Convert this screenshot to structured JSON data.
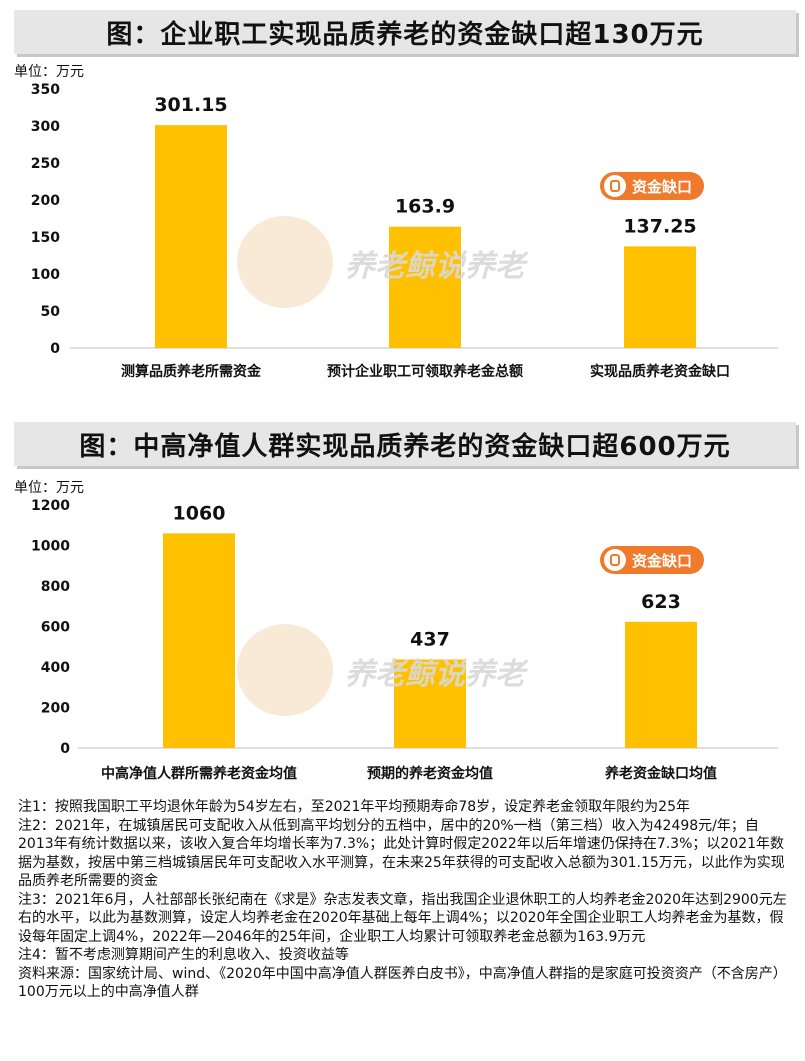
{
  "titles": {
    "chart1": "图：企业职工实现品质养老的资金缺口超130万元",
    "chart2": "图：中高净值人群实现品质养老的资金缺口超600万元"
  },
  "unit_label": "单位：万元",
  "badge_label": "资金缺口",
  "watermark": "养老鲸说养老",
  "colors": {
    "bar": "#ffc000",
    "badge": "#f07a2c",
    "watermark": "#d9d9d9"
  },
  "chart_data": [
    {
      "type": "bar",
      "title": "图：企业职工实现品质养老的资金缺口超130万元",
      "ylabel": "单位：万元",
      "categories": [
        "测算品质养老所需资金",
        "预计企业职工可领取养老金总额",
        "实现品质养老资金缺口"
      ],
      "values": [
        301.15,
        163.9,
        137.25
      ],
      "value_labels": [
        "301.15",
        "163.9",
        "137.25"
      ],
      "ylim": [
        0,
        350
      ],
      "yticks": [
        0,
        50,
        100,
        150,
        200,
        250,
        300,
        350
      ],
      "grid": false
    },
    {
      "type": "bar",
      "title": "图：中高净值人群实现品质养老的资金缺口超600万元",
      "ylabel": "单位：万元",
      "categories": [
        "中高净值人群所需养老资金均值",
        "预期的养老资金均值",
        "养老资金缺口均值"
      ],
      "values": [
        1060,
        437,
        623
      ],
      "value_labels": [
        "1060",
        "437",
        "623"
      ],
      "ylim": [
        0,
        1200
      ],
      "yticks": [
        0,
        200,
        400,
        600,
        800,
        1000,
        1200
      ],
      "grid": false
    }
  ],
  "notes": [
    "注1：按照我国职工平均退休年龄为54岁左右，至2021年平均预期寿命78岁，设定养老金领取年限约为25年",
    "注2：2021年，在城镇居民可支配收入从低到高平均划分的五档中，居中的20%一档（第三档）收入为42498元/年；自2013年有统计数据以来，该收入复合年均增长率为7.3%；此处计算时假定2022年以后年增速仍保持在7.3%；以2021年数据为基数，按居中第三档城镇居民年可支配收入水平测算，在未来25年获得的可支配收入总额为301.15万元，以此作为实现品质养老所需要的资金",
    "注3：2021年6月，人社部部长张纪南在《求是》杂志发表文章，指出我国企业退休职工的人均养老金2020年达到2900元左右的水平，以此为基数测算，设定人均养老金在2020年基础上每年上调4%；以2020年全国企业职工人均养老金为基数，假设每年固定上调4%，2022年—2046年的25年间，企业职工人均累计可领取养老金总额为163.9万元",
    "注4：暂不考虑测算期间产生的利息收入、投资收益等",
    "资料来源：国家统计局、wind、《2020年中国中高净值人群医养白皮书》，中高净值人群指的是家庭可投资资产（不含房产）100万元以上的中高净值人群"
  ]
}
